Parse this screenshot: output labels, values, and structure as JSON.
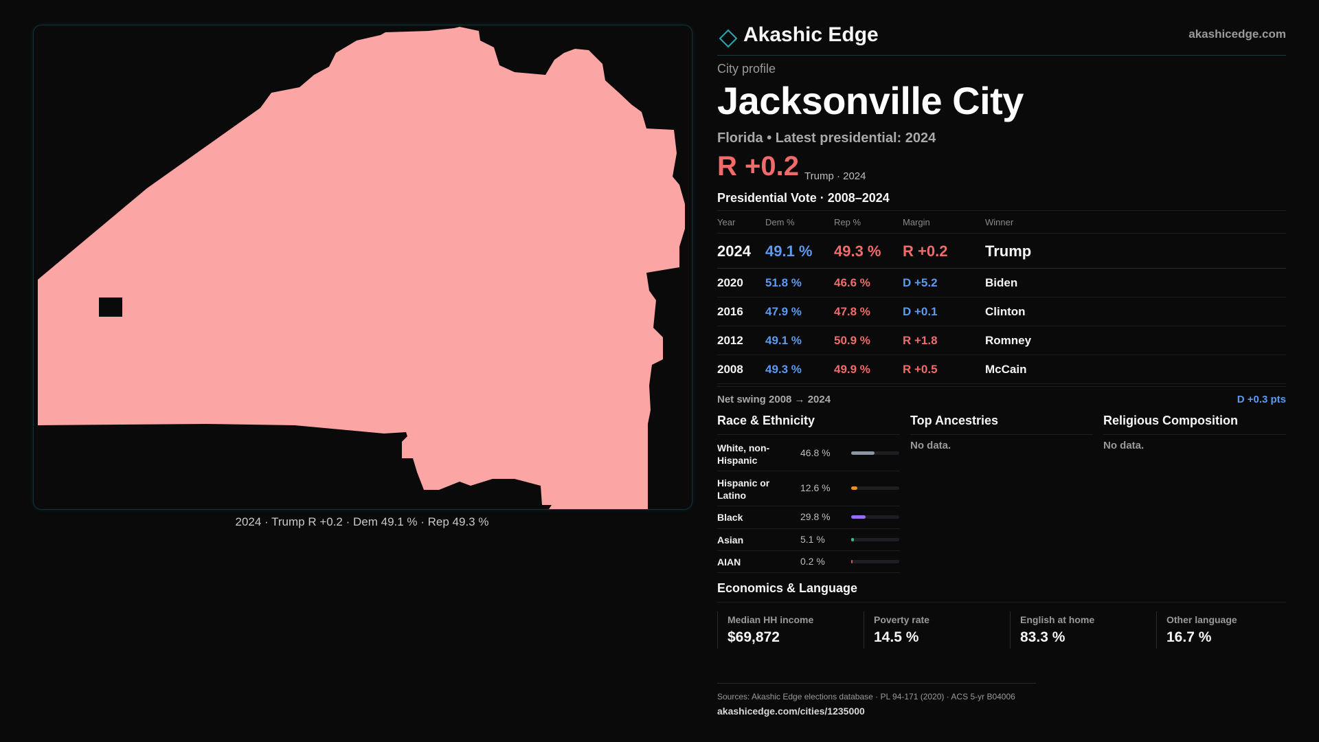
{
  "brand": {
    "name": "Akashic Edge",
    "url": "akashicedge.com",
    "icon": "diamond-icon",
    "accent": "#2aa9b0"
  },
  "profile": {
    "kicker": "City profile",
    "title": "Jacksonville City",
    "subtitle": "Florida • Latest presidential: 2024",
    "margin": "R +0.2",
    "margin_note": "Trump · 2024"
  },
  "map": {
    "caption": "2024 · Trump R +0.2 · Dem 49.1 % · Rep 49.3 %",
    "fill": "#fca5a5"
  },
  "vote": {
    "title": "Presidential Vote · 2008–2024",
    "headers": {
      "year": "Year",
      "dem": "Dem %",
      "rep": "Rep %",
      "margin": "Margin",
      "winner": "Winner"
    },
    "rows": [
      {
        "year": "2024",
        "dem": "49.1 %",
        "rep": "49.3 %",
        "margin": "R +0.2",
        "winner": "Trump"
      },
      {
        "year": "2020",
        "dem": "51.8 %",
        "rep": "46.6 %",
        "margin": "D +5.2",
        "winner": "Biden"
      },
      {
        "year": "2016",
        "dem": "47.9 %",
        "rep": "47.8 %",
        "margin": "D +0.1",
        "winner": "Clinton"
      },
      {
        "year": "2012",
        "dem": "49.1 %",
        "rep": "50.9 %",
        "margin": "R +1.8",
        "winner": "Romney"
      },
      {
        "year": "2008",
        "dem": "49.3 %",
        "rep": "49.9 %",
        "margin": "R +0.5",
        "winner": "McCain"
      }
    ],
    "swing_label": "Net swing 2008 → 2024",
    "swing_value": "D +0.3 pts"
  },
  "race": {
    "title": "Race & Ethnicity",
    "rows": [
      {
        "label": "White, non-Hispanic",
        "pct": "46.8 %",
        "fraction": 0.468,
        "color": "#8e96a6"
      },
      {
        "label": "Hispanic or Latino",
        "pct": "12.6 %",
        "fraction": 0.126,
        "color": "#e8922b"
      },
      {
        "label": "Black",
        "pct": "29.8 %",
        "fraction": 0.298,
        "color": "#9a6cf0"
      },
      {
        "label": "Asian",
        "pct": "5.1 %",
        "fraction": 0.051,
        "color": "#2fbf8a"
      },
      {
        "label": "AIAN",
        "pct": "0.2 %",
        "fraction": 0.002,
        "color": "#c75a5a"
      }
    ]
  },
  "ancestry": {
    "title": "Top Ancestries",
    "empty": "No data."
  },
  "religion": {
    "title": "Religious Composition",
    "empty": "No data."
  },
  "economics": {
    "title": "Economics & Language",
    "cells": [
      {
        "label": "Median HH income",
        "value": "$69,872"
      },
      {
        "label": "Poverty rate",
        "value": "14.5 %"
      },
      {
        "label": "English at home",
        "value": "83.3 %"
      },
      {
        "label": "Other language",
        "value": "16.7 %"
      }
    ]
  },
  "footer": {
    "sources": "Sources: Akashic Edge elections database · PL 94-171 (2020) · ACS 5-yr B04006",
    "url": "akashicedge.com/cities/1235000"
  }
}
